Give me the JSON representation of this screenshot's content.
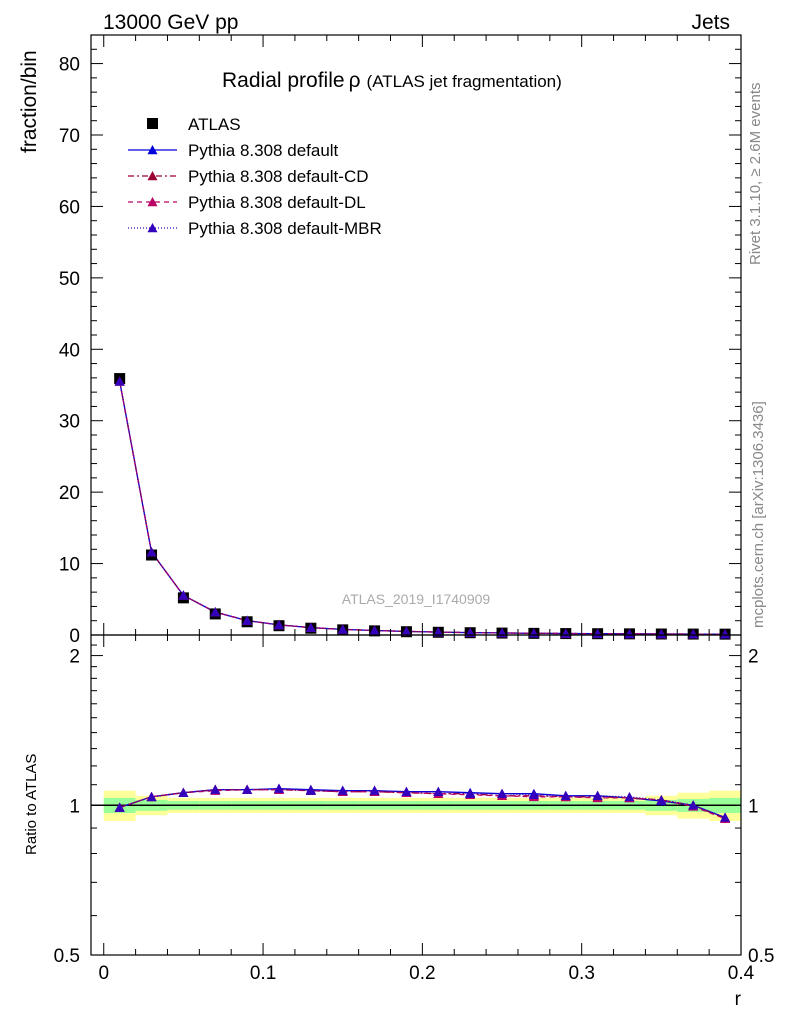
{
  "header": {
    "left": "13000 GeV pp",
    "right": "Jets"
  },
  "side_text": {
    "rivet": "Rivet 3.1.10, ≥ 2.6M events",
    "mcplots": "mcplots.cern.ch [arXiv:1306.3436]"
  },
  "chart_data": {
    "type": "line",
    "title_main": "Radial profile",
    "title_symbol": "ρ",
    "title_sub": "(ATLAS jet fragmentation)",
    "ylabel": "fraction/bin",
    "xlabel": "r",
    "ratio_ylabel": "Ratio to ATLAS",
    "watermark": "ATLAS_2019_I1740909",
    "xlim": [
      -0.008,
      0.4
    ],
    "ylim": [
      0,
      84
    ],
    "ratio_ylim": [
      0.5,
      2.2
    ],
    "ratio_log_scale": true,
    "x_ticks": [
      0,
      0.1,
      0.2,
      0.3,
      0.4
    ],
    "x_tick_labels": [
      "0",
      "0.1",
      "0.2",
      "0.3",
      "0.4"
    ],
    "y_ticks": [
      0,
      10,
      20,
      30,
      40,
      50,
      60,
      70,
      80
    ],
    "y_tick_labels": [
      "0",
      "10",
      "20",
      "30",
      "40",
      "50",
      "60",
      "70",
      "80"
    ],
    "ratio_ticks": [
      0.5,
      1,
      2
    ],
    "ratio_tick_labels": [
      "0.5",
      "1",
      "2"
    ],
    "x": [
      0.01,
      0.03,
      0.05,
      0.07,
      0.09,
      0.11,
      0.13,
      0.15,
      0.17,
      0.19,
      0.21,
      0.23,
      0.25,
      0.27,
      0.29,
      0.31,
      0.33,
      0.35,
      0.37,
      0.39
    ],
    "data": {
      "name": "ATLAS",
      "values": [
        35.9,
        11.2,
        5.2,
        2.95,
        1.85,
        1.3,
        0.95,
        0.72,
        0.58,
        0.46,
        0.38,
        0.32,
        0.27,
        0.23,
        0.2,
        0.18,
        0.16,
        0.14,
        0.13,
        0.12
      ],
      "band_green": [
        0.035,
        0.025,
        0.02,
        0.02,
        0.02,
        0.02,
        0.02,
        0.02,
        0.02,
        0.02,
        0.02,
        0.02,
        0.02,
        0.02,
        0.02,
        0.02,
        0.02,
        0.025,
        0.03,
        0.035
      ],
      "band_yellow": [
        0.07,
        0.045,
        0.035,
        0.035,
        0.035,
        0.035,
        0.035,
        0.035,
        0.035,
        0.035,
        0.035,
        0.035,
        0.035,
        0.035,
        0.035,
        0.035,
        0.035,
        0.045,
        0.06,
        0.07
      ]
    },
    "series": [
      {
        "name": "Pythia 8.308 default",
        "color": "#0000dd",
        "dash": "none",
        "values": [
          35.5,
          11.6,
          5.55,
          3.2,
          2.02,
          1.42,
          1.03,
          0.78,
          0.63,
          0.5,
          0.41,
          0.34,
          0.29,
          0.245,
          0.207,
          0.187,
          0.165,
          0.142,
          0.131,
          0.113
        ],
        "ratio": [
          0.99,
          1.04,
          1.06,
          1.075,
          1.075,
          1.08,
          1.075,
          1.07,
          1.07,
          1.065,
          1.065,
          1.06,
          1.055,
          1.055,
          1.045,
          1.045,
          1.035,
          1.02,
          1.0,
          0.945
        ]
      },
      {
        "name": "Pythia 8.308 default-CD",
        "color": "#990033",
        "dash": "6,3,2,3",
        "values": [
          35.5,
          11.6,
          5.55,
          3.2,
          2.02,
          1.42,
          1.03,
          0.78,
          0.63,
          0.5,
          0.41,
          0.34,
          0.29,
          0.245,
          0.207,
          0.187,
          0.165,
          0.142,
          0.131,
          0.113
        ],
        "ratio": [
          0.99,
          1.04,
          1.06,
          1.075,
          1.075,
          1.075,
          1.07,
          1.065,
          1.065,
          1.06,
          1.055,
          1.055,
          1.045,
          1.045,
          1.04,
          1.04,
          1.035,
          1.025,
          1.0,
          0.94
        ]
      },
      {
        "name": "Pythia 8.308 default-DL",
        "color": "#bb0066",
        "dash": "5,4",
        "values": [
          35.5,
          11.6,
          5.55,
          3.2,
          2.02,
          1.42,
          1.03,
          0.78,
          0.63,
          0.5,
          0.41,
          0.34,
          0.29,
          0.245,
          0.207,
          0.187,
          0.165,
          0.142,
          0.131,
          0.113
        ],
        "ratio": [
          0.99,
          1.04,
          1.06,
          1.07,
          1.075,
          1.075,
          1.07,
          1.065,
          1.065,
          1.06,
          1.055,
          1.05,
          1.045,
          1.04,
          1.04,
          1.035,
          1.035,
          1.025,
          0.995,
          0.94
        ]
      },
      {
        "name": "Pythia 8.308 default-MBR",
        "color": "#3300bb",
        "dash": "1,2",
        "values": [
          35.5,
          11.6,
          5.55,
          3.2,
          2.02,
          1.42,
          1.03,
          0.78,
          0.63,
          0.5,
          0.41,
          0.34,
          0.29,
          0.245,
          0.207,
          0.187,
          0.165,
          0.142,
          0.131,
          0.113
        ],
        "ratio": [
          0.99,
          1.04,
          1.06,
          1.075,
          1.075,
          1.08,
          1.07,
          1.07,
          1.07,
          1.065,
          1.065,
          1.055,
          1.055,
          1.05,
          1.045,
          1.045,
          1.04,
          1.025,
          1.0,
          0.945
        ]
      }
    ],
    "legend_placement": "top-left"
  }
}
